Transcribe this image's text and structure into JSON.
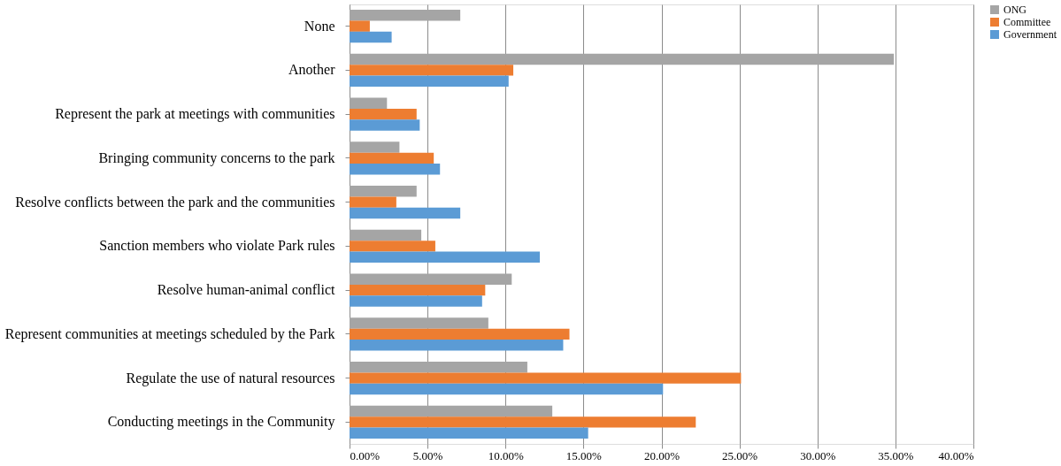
{
  "chart_data": {
    "type": "bar",
    "orientation": "horizontal",
    "categories": [
      "None",
      "Another",
      "Represent the park at meetings with communities",
      "Bringing community concerns to the park",
      "Resolve conflicts between the park and the communities",
      "Sanction members who violate Park rules",
      "Resolve human-animal conflict",
      "Represent communities at meetings scheduled by the Park",
      "Regulate the use of natural resources",
      "Conducting meetings in the Community"
    ],
    "series": [
      {
        "name": "ONG",
        "color": "#a5a5a5",
        "values": [
          7.1,
          34.9,
          2.4,
          3.2,
          4.3,
          4.6,
          10.4,
          8.9,
          11.4,
          13.0
        ]
      },
      {
        "name": "Committee",
        "color": "#ed7d31",
        "values": [
          1.3,
          10.5,
          4.3,
          5.4,
          3.0,
          5.5,
          8.7,
          14.1,
          25.1,
          22.2
        ]
      },
      {
        "name": "Government",
        "color": "#5b9bd5",
        "values": [
          2.7,
          10.2,
          4.5,
          5.8,
          7.1,
          12.2,
          8.5,
          13.7,
          20.1,
          15.3
        ]
      }
    ],
    "xlim": [
      0,
      40
    ],
    "xticks": [
      {
        "value": 0,
        "label": "0.00%"
      },
      {
        "value": 5,
        "label": "5.00%"
      },
      {
        "value": 10,
        "label": "10.00%"
      },
      {
        "value": 15,
        "label": "15.00%"
      },
      {
        "value": 20,
        "label": "20.00%"
      },
      {
        "value": 25,
        "label": "25.00%"
      },
      {
        "value": 30,
        "label": "30.00%"
      },
      {
        "value": 35,
        "label": "35.00%"
      },
      {
        "value": 40,
        "label": "40.00%"
      }
    ],
    "grid": "x",
    "legend": "right"
  }
}
